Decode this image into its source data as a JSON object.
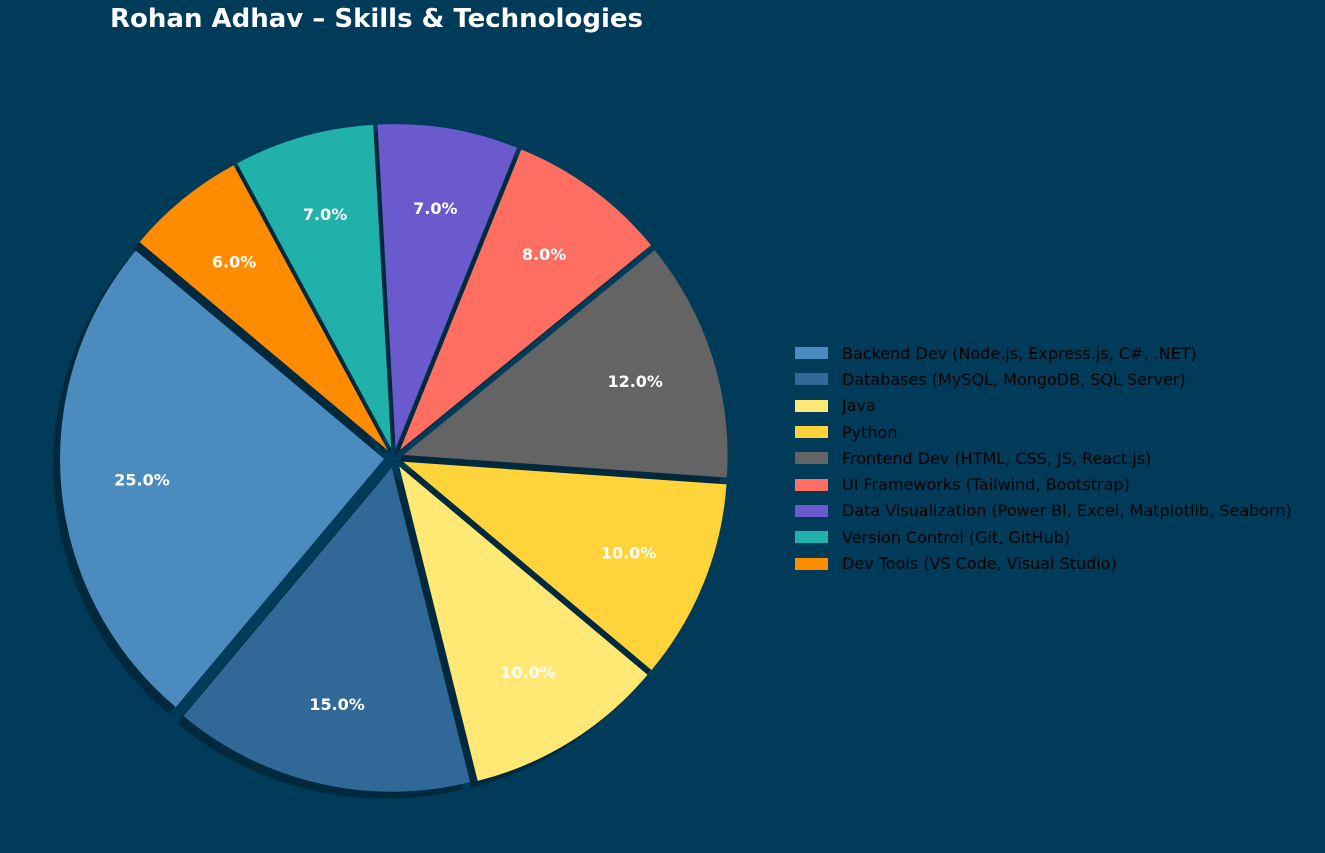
{
  "chart_data": {
    "type": "pie",
    "title": "Rohan Adhav – Skills & Technologies",
    "start_angle_deg": 140,
    "direction": "counterclockwise",
    "exploded": true,
    "shadow": true,
    "legend_placement": "right",
    "slices": [
      {
        "label": "Backend Dev (Node.js, Express.js, C#, .NET)",
        "value": 25.0,
        "pct_label": "25.0%",
        "color": "#4b8bbe"
      },
      {
        "label": "Databases (MySQL, MongoDB, SQL Server)",
        "value": 15.0,
        "pct_label": "15.0%",
        "color": "#306998"
      },
      {
        "label": "Java",
        "value": 10.0,
        "pct_label": "10.0%",
        "color": "#ffe873"
      },
      {
        "label": "Python",
        "value": 10.0,
        "pct_label": "10.0%",
        "color": "#ffd43b"
      },
      {
        "label": "Frontend Dev (HTML, CSS, JS, React.js)",
        "value": 12.0,
        "pct_label": "12.0%",
        "color": "#646464"
      },
      {
        "label": "UI Frameworks (Tailwind, Bootstrap)",
        "value": 8.0,
        "pct_label": "8.0%",
        "color": "#ff6f61"
      },
      {
        "label": "Data Visualization (Power BI, Excel, Matplotlib, Seaborn)",
        "value": 7.0,
        "pct_label": "7.0%",
        "color": "#6a5acd"
      },
      {
        "label": "Version Control (Git, GitHub)",
        "value": 7.0,
        "pct_label": "7.0%",
        "color": "#20b2aa"
      },
      {
        "label": "Dev Tools (VS Code, Visual Studio)",
        "value": 6.0,
        "pct_label": "6.0%",
        "color": "#ff8c00"
      }
    ]
  }
}
